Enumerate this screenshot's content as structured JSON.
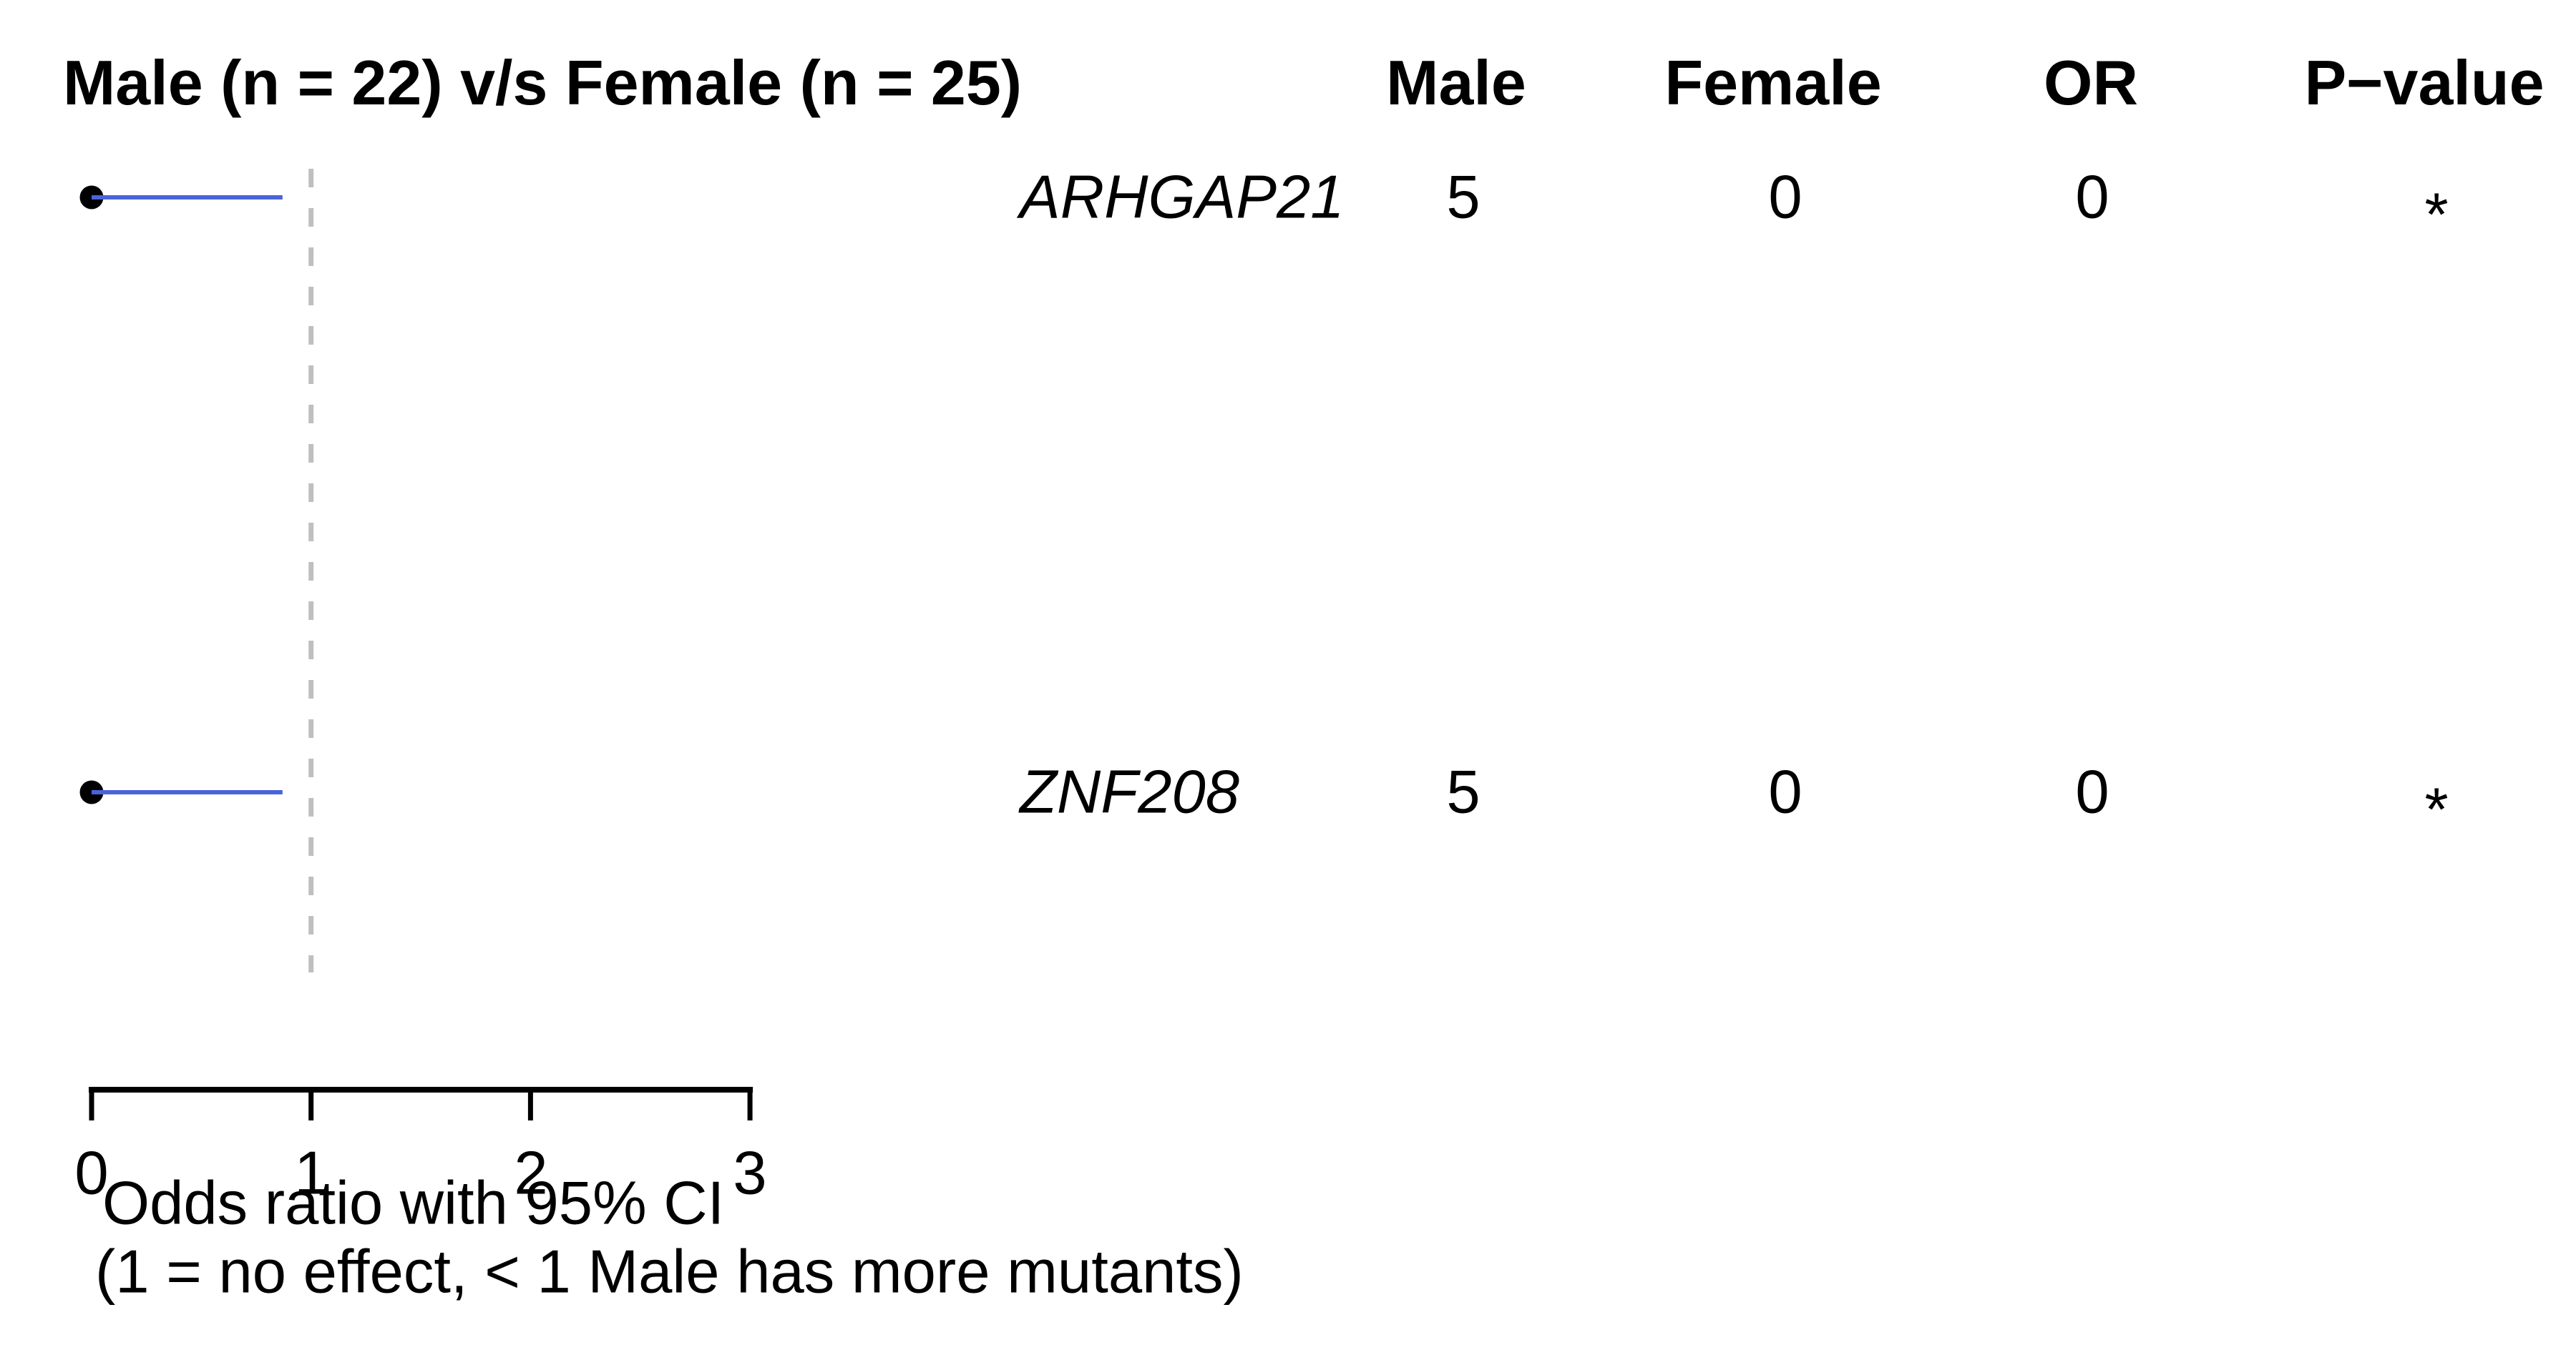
{
  "title": "Male (n = 22) v/s Female (n = 25)",
  "columns": [
    "Male",
    "Female",
    "OR",
    "P−value"
  ],
  "rows": [
    {
      "gene": "ARHGAP21",
      "male": "5",
      "female": "0",
      "or": "0",
      "pvalue": "*"
    },
    {
      "gene": "ZNF208",
      "male": "5",
      "female": "0",
      "or": "0",
      "pvalue": "*"
    }
  ],
  "axis": {
    "ticks": [
      "0",
      "1",
      "2",
      "3"
    ],
    "label_line1": "Odds ratio with 95% CI",
    "label_line2": "(1 = no effect, < 1 Male has more mutants)"
  },
  "colors": {
    "background": "#ffffff",
    "text": "#000000",
    "ci_line": "#4b63d8",
    "point": "#000000",
    "reference_line": "#bfbfbf",
    "axis_line": "#000000"
  },
  "chart_data": {
    "type": "forest",
    "title": "Male (n = 22) v/s Female (n = 25)",
    "group_sizes": {
      "male_n": 22,
      "female_n": 25
    },
    "xlabel_line1": "Odds ratio with 95% CI",
    "xlabel_line2": "(1 = no effect, < 1 Male has more mutants)",
    "x_ticks": [
      0,
      1,
      2,
      3
    ],
    "xlim": [
      0,
      3
    ],
    "reference_line_x": 1,
    "reference_line_style": "dashed",
    "series": [
      {
        "gene": "ARHGAP21",
        "male_mutants": 5,
        "female_mutants": 0,
        "odds_ratio": 0,
        "ci_low": 0,
        "ci_high": 0.87,
        "significance": "*"
      },
      {
        "gene": "ZNF208",
        "male_mutants": 5,
        "female_mutants": 0,
        "odds_ratio": 0,
        "ci_low": 0,
        "ci_high": 0.87,
        "significance": "*"
      }
    ]
  }
}
